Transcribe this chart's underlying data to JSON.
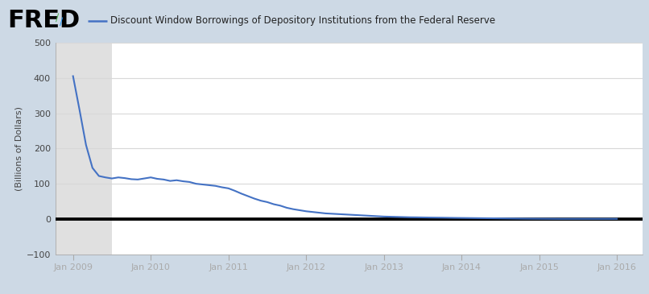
{
  "title": "Discount Window Borrowings of Depository Institutions from the Federal Reserve",
  "ylabel": "(Billions of Dollars)",
  "bg_outer": "#cdd9e5",
  "bg_inner": "#ffffff",
  "bg_recession": "#e0e0e0",
  "line_color": "#4472c4",
  "zero_line_color": "#000000",
  "ylim": [
    -100,
    500
  ],
  "yticks": [
    -100,
    0,
    100,
    200,
    300,
    400,
    500
  ],
  "xlim_start": 2008.77,
  "xlim_end": 2016.33,
  "recession_start": 2008.77,
  "recession_end": 2009.5,
  "xtick_years": [
    2009,
    2010,
    2011,
    2012,
    2013,
    2014,
    2015,
    2016
  ],
  "fred_text": "FRED",
  "data_x": [
    2009.0,
    2009.083,
    2009.167,
    2009.25,
    2009.333,
    2009.417,
    2009.5,
    2009.583,
    2009.667,
    2009.75,
    2009.833,
    2009.917,
    2010.0,
    2010.083,
    2010.167,
    2010.25,
    2010.333,
    2010.417,
    2010.5,
    2010.583,
    2010.667,
    2010.75,
    2010.833,
    2010.917,
    2011.0,
    2011.083,
    2011.167,
    2011.25,
    2011.333,
    2011.417,
    2011.5,
    2011.583,
    2011.667,
    2011.75,
    2011.833,
    2011.917,
    2012.0,
    2012.083,
    2012.167,
    2012.25,
    2012.333,
    2012.417,
    2012.5,
    2012.583,
    2012.667,
    2012.75,
    2012.833,
    2012.917,
    2013.0,
    2013.083,
    2013.167,
    2013.25,
    2013.333,
    2013.417,
    2013.5,
    2013.583,
    2013.667,
    2013.75,
    2013.833,
    2013.917,
    2014.0,
    2014.083,
    2014.167,
    2014.25,
    2014.333,
    2014.417,
    2014.5,
    2014.583,
    2014.667,
    2014.75,
    2014.833,
    2014.917,
    2015.0,
    2015.083,
    2015.167,
    2015.25,
    2015.333,
    2015.417,
    2015.5,
    2015.583,
    2015.667,
    2015.75,
    2015.833,
    2015.917,
    2016.0
  ],
  "data_y": [
    405,
    310,
    210,
    145,
    122,
    118,
    115,
    118,
    116,
    113,
    112,
    115,
    118,
    114,
    112,
    108,
    110,
    107,
    105,
    100,
    98,
    96,
    94,
    90,
    87,
    80,
    72,
    65,
    58,
    52,
    48,
    42,
    38,
    32,
    28,
    25,
    22,
    20,
    18,
    16,
    15,
    14,
    13,
    12,
    11,
    10,
    9,
    8,
    7,
    6.5,
    6,
    5.5,
    5,
    4.8,
    4.5,
    4.2,
    4,
    3.8,
    3.5,
    3.2,
    3,
    2.8,
    2.6,
    2.4,
    2.2,
    2,
    1.8,
    1.6,
    1.4,
    1.2,
    1.0,
    0.9,
    0.8,
    0.7,
    0.6,
    0.5,
    0.5,
    0.5,
    0.5,
    0.5,
    0.5,
    0.5,
    0.5,
    0.5,
    0.5
  ]
}
